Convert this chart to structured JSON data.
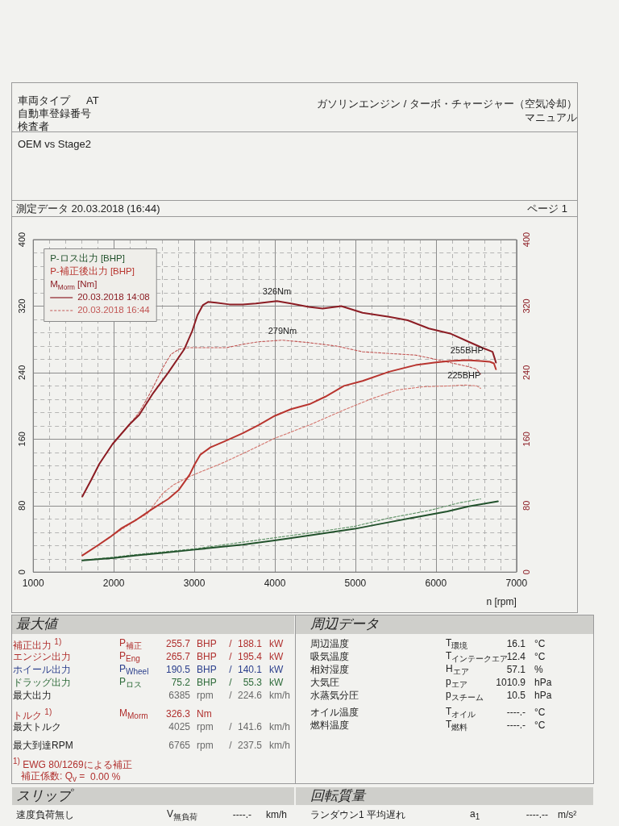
{
  "chart_data": {
    "type": "line",
    "title": "OEM vs Stage2",
    "subtitle": "測定データ 20.03.2018 (16:44)",
    "xlabel": "n [rpm]",
    "xlim": [
      1000,
      7000
    ],
    "xticks": [
      1000,
      {
        "value": 1200,
        "label": null
      },
      {
        "value": 1400,
        "label": null
      },
      {
        "value": 1600,
        "label": null
      },
      {
        "value": 1800,
        "label": null
      },
      2000,
      {
        "value": 2200,
        "label": null
      },
      {
        "value": 2400,
        "label": null
      },
      {
        "value": 2600,
        "label": null
      },
      {
        "value": 2800,
        "label": null
      },
      3000,
      {
        "value": 3200,
        "label": null
      },
      {
        "value": 3400,
        "label": null
      },
      {
        "value": 3600,
        "label": null
      },
      {
        "value": 3800,
        "label": null
      },
      4000,
      {
        "value": 4200,
        "label": null
      },
      {
        "value": 4400,
        "label": null
      },
      {
        "value": 4600,
        "label": null
      },
      {
        "value": 4800,
        "label": null
      },
      5000,
      {
        "value": 5200,
        "label": null
      },
      {
        "value": 5400,
        "label": null
      },
      {
        "value": 5600,
        "label": null
      },
      {
        "value": 5800,
        "label": null
      },
      6000,
      {
        "value": 6200,
        "label": null
      },
      {
        "value": 6400,
        "label": null
      },
      {
        "value": 6600,
        "label": null
      },
      {
        "value": 6800,
        "label": null
      },
      7000
    ],
    "ylim": [
      0,
      400
    ],
    "yticks": [
      0,
      {
        "value": 16,
        "label": null
      },
      {
        "value": 32,
        "label": null
      },
      {
        "value": 48,
        "label": null
      },
      {
        "value": 64,
        "label": null
      },
      80,
      {
        "value": 96,
        "label": null
      },
      {
        "value": 112,
        "label": null
      },
      {
        "value": 128,
        "label": null
      },
      {
        "value": 144,
        "label": null
      },
      160,
      {
        "value": 176,
        "label": null
      },
      {
        "value": 192,
        "label": null
      },
      {
        "value": 208,
        "label": null
      },
      {
        "value": 224,
        "label": null
      },
      240,
      {
        "value": 256,
        "label": null
      },
      {
        "value": 272,
        "label": null
      },
      {
        "value": 288,
        "label": null
      },
      {
        "value": 304,
        "label": null
      },
      320,
      {
        "value": 336,
        "label": null
      },
      {
        "value": 352,
        "label": null
      },
      {
        "value": 368,
        "label": null
      },
      {
        "value": 384,
        "label": null
      },
      400
    ],
    "y2lim": [
      0,
      400
    ],
    "y2ticks": [
      0,
      80,
      160,
      240,
      320,
      400
    ],
    "grid": true,
    "legend": "top left",
    "series": [
      {
        "name": "P-ロス出力 [BHP]",
        "color": "#22522c",
        "line_style": "solid",
        "x": [
          1610,
          2000,
          2282,
          2600,
          3007,
          3300,
          3600,
          3995,
          4430,
          4990,
          5418,
          5748,
          6142,
          6407,
          6770
        ],
        "values": [
          14,
          17,
          20,
          23,
          27,
          30,
          33,
          38,
          44,
          52,
          60,
          66,
          73,
          79,
          85
        ]
      },
      {
        "name": "P-補正後出力 [BHP]",
        "color": "#b8352f",
        "line_style": "solid",
        "x": [
          1610,
          1800,
          1952,
          2100,
          2282,
          2480,
          2677,
          2809,
          2941,
          3007,
          3073,
          3200,
          3370,
          3600,
          3800,
          4000,
          4200,
          4430,
          4627,
          4858,
          5089,
          5418,
          5748,
          5979,
          6176,
          6385,
          6550,
          6670,
          6720,
          6745
        ],
        "values": [
          20,
          32,
          42,
          53,
          63,
          76,
          88,
          99,
          117,
          130,
          141,
          150,
          157,
          167,
          177,
          188,
          196,
          202,
          211,
          224,
          230,
          241,
          249,
          252,
          254,
          255,
          254,
          253,
          251,
          244
        ]
      },
      {
        "name": "M$_{Morm}$ [Nm]",
        "color": "#8c1d24",
        "line_style": "solid",
        "axis": "y2",
        "x": [
          1610,
          1721,
          1820,
          1985,
          2199,
          2315,
          2480,
          2677,
          2875,
          2974,
          3039,
          3105,
          3171,
          3270,
          3435,
          3600,
          3764,
          4025,
          4200,
          4423,
          4594,
          4825,
          5089,
          5418,
          5649,
          5913,
          6176,
          6407,
          6572,
          6703,
          6736,
          6745
        ],
        "values": [
          91,
          111,
          130,
          154,
          178,
          189,
          214,
          240,
          268,
          290,
          309,
          321,
          325,
          324,
          322,
          322,
          323,
          326,
          323,
          319,
          317,
          320,
          312,
          307,
          303,
          293,
          287,
          277,
          270,
          265,
          255,
          252
        ]
      },
      {
        "color": "#5a8f62",
        "line_style": "dashed",
        "x": [
          1610,
          2282,
          3007,
          3600,
          4430,
          4990,
          5418,
          5913,
          6276,
          6555
        ],
        "values": [
          14,
          21,
          28,
          36,
          47,
          55,
          65,
          74,
          83,
          88
        ]
      },
      {
        "color": "#d4756d",
        "line_style": "dashed",
        "x": [
          1610,
          1952,
          2282,
          2414,
          2611,
          2743,
          2941,
          3369,
          3700,
          4000,
          4430,
          4858,
          5188,
          5517,
          5847,
          6176,
          6350,
          6506,
          6555
        ],
        "values": [
          20,
          42,
          63,
          70,
          95,
          105,
          115,
          132,
          147,
          161,
          177,
          195,
          208,
          219,
          223,
          224,
          225,
          224,
          221
        ]
      },
      {
        "color": "#c25856",
        "line_style": "dashed",
        "axis": "y2",
        "x": [
          1610,
          1721,
          1820,
          1985,
          2199,
          2315,
          2450,
          2611,
          2710,
          2809,
          2941,
          3150,
          3402,
          3600,
          3797,
          4094,
          4423,
          4760,
          5089,
          5418,
          5748,
          5946,
          6176,
          6407,
          6506,
          6555
        ],
        "values": [
          91,
          111,
          130,
          154,
          178,
          192,
          215,
          246,
          262,
          268,
          270,
          270,
          270,
          274,
          277,
          279,
          276,
          272,
          265,
          263,
          261,
          257,
          252,
          247,
          244,
          238
        ]
      }
    ],
    "annotations": [
      {
        "text": "326Nm",
        "x": 4025,
        "y": 326
      },
      {
        "text": "279Nm",
        "x": 4094,
        "y": 279
      },
      {
        "text": "255BHP",
        "x": 6385,
        "y": 255
      },
      {
        "text": "225BHP",
        "x": 6350,
        "y": 225
      },
      "20.03.2018 14:08",
      "20.03.2018 16:44",
      "車両タイプ",
      "AT",
      "自動車登録番号",
      "検査者",
      "ガソリンエンジン / ターボ・チャージャー（空気冷却）",
      "マニュアル",
      "ページ 1",
      "最大値",
      "周辺データ",
      "補正出力 $^{1)}$",
      "P$_{補正}$",
      "255.7",
      "BHP",
      "/",
      "188.1",
      "kW",
      "エンジン出力",
      "P$_{Eng}$",
      "265.7",
      "BHP",
      "/",
      "195.4",
      "kW",
      "ホイール出力",
      "P$_{Wheel}$",
      "190.5",
      "BHP",
      "/",
      "140.1",
      "kW",
      "ドラッグ出力",
      "P$_{ロス}$",
      "75.2",
      "BHP",
      "/",
      "55.3",
      "kW",
      "最大出力",
      "6385",
      "rpm",
      "/",
      "224.6",
      "km/h",
      "トルク $^{1)}$",
      "M$_{Morm}$",
      "326.3",
      "Nm",
      "最大トルク",
      "4025",
      "rpm",
      "/",
      "141.6",
      "km/h",
      "最大到達RPM",
      "6765",
      "rpm",
      "/",
      "237.5",
      "km/h",
      "$^{1)}$ EWG 80/1269による補正",
      "補正係数: Q$_{v}$ =",
      "0.00 %",
      "周辺温度",
      "T$_{環境}$",
      "16.1",
      "°C",
      "吸気温度",
      "T$_{インテークエア}$",
      "12.4",
      "°C",
      "相対湿度",
      "H$_{エア}$",
      "57.1",
      "%",
      "大気圧",
      "p$_{エア}$",
      "1010.9",
      "hPa",
      "水蒸気分圧",
      "p$_{スチーム}$",
      "10.5",
      "hPa",
      "オイル温度",
      "T$_{オイル}$",
      "----.-",
      "°C",
      "燃料温度",
      "T$_{燃料}$",
      "----.-",
      "°C",
      "スリップ",
      "回転質量",
      "速度負荷無し",
      "V$_{無負荷}$",
      "----.-",
      "km/h",
      "ランダウン1 平均遅れ",
      "a$_{1}$",
      "----.--",
      "m/s²"
    ]
  }
}
